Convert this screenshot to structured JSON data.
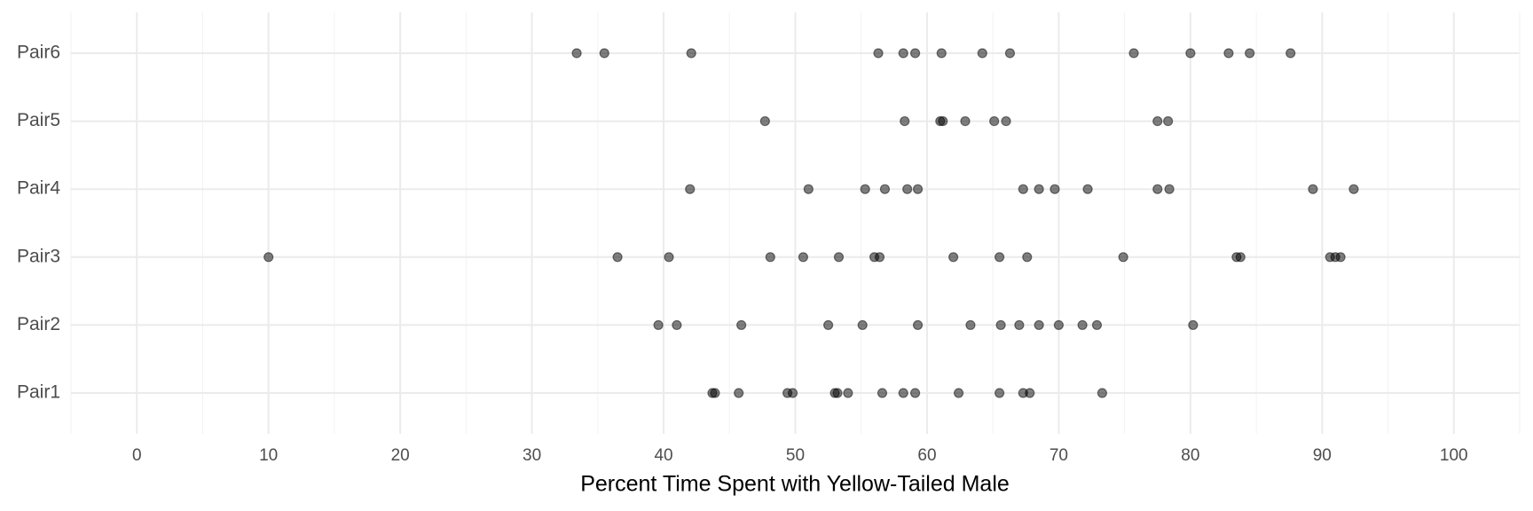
{
  "chart_data": {
    "type": "strip",
    "x_label": "Percent Time Spent with Yellow-Tailed Male",
    "categories": [
      "Pair1",
      "Pair2",
      "Pair3",
      "Pair4",
      "Pair5",
      "Pair6"
    ],
    "values": [
      [
        43.7,
        43.9,
        45.7,
        49.4,
        49.8,
        53.0,
        53.2,
        54.0,
        56.6,
        58.2,
        59.1,
        62.4,
        65.5,
        67.3,
        67.8,
        73.3
      ],
      [
        39.6,
        41.0,
        45.9,
        52.5,
        55.1,
        59.3,
        63.3,
        65.6,
        67.0,
        68.5,
        70.0,
        71.8,
        72.9,
        80.2
      ],
      [
        10.0,
        36.5,
        40.4,
        48.1,
        50.6,
        53.3,
        56.0,
        56.4,
        62.0,
        65.5,
        67.6,
        74.9,
        83.5,
        83.8,
        90.6,
        91.0,
        91.4
      ],
      [
        42.0,
        51.0,
        55.3,
        56.8,
        58.5,
        59.3,
        67.3,
        68.5,
        69.7,
        72.2,
        77.5,
        78.4,
        89.3,
        92.4
      ],
      [
        47.7,
        58.3,
        61.0,
        61.2,
        62.9,
        65.1,
        66.0,
        77.5,
        78.3
      ],
      [
        33.4,
        35.5,
        42.1,
        56.3,
        58.2,
        59.1,
        61.1,
        64.2,
        66.3,
        75.7,
        80.0,
        82.9,
        84.5,
        87.6
      ]
    ],
    "color": "#000000",
    "opacity": 0.5,
    "xlim": [
      -5,
      105
    ],
    "xticks": [
      0,
      10,
      20,
      30,
      40,
      50,
      60,
      70,
      80,
      90,
      100
    ],
    "grid": true
  }
}
